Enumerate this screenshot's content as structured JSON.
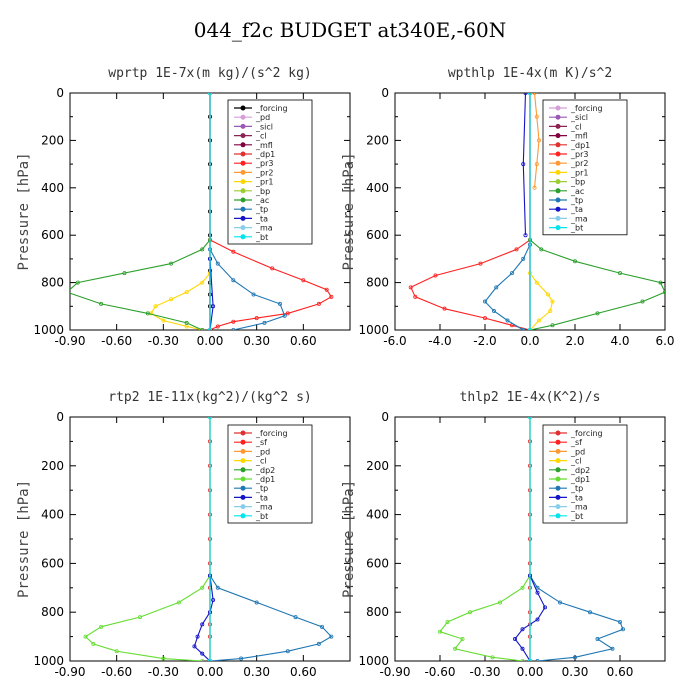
{
  "title": "044_f2c  BUDGET at340E,-60N",
  "chart_data": [
    {
      "type": "line",
      "title": "wprtp   1E-7x(m kg)/(s^2 kg)",
      "ylabel": "Pressure [hPa]",
      "xlim": [
        -0.9,
        0.9
      ],
      "ylim": [
        1000,
        0
      ],
      "xticks": [
        "-0.90",
        "-0.60",
        "-0.30",
        "0.00",
        "0.30",
        "0.60"
      ],
      "yticks": [
        "0",
        "200",
        "400",
        "600",
        "800",
        "1000"
      ],
      "legend": "top-right",
      "series": [
        {
          "name": "_forcing",
          "color": "#000000",
          "x": [
            0,
            0,
            0,
            0,
            0,
            0,
            0,
            0,
            0,
            0,
            0,
            0,
            0
          ],
          "y": [
            0,
            100,
            200,
            300,
            400,
            500,
            600,
            700,
            750,
            800,
            850,
            900,
            1000
          ]
        },
        {
          "name": "_pd",
          "color": "#d49fd8",
          "x": [
            0,
            0
          ],
          "y": [
            0,
            1000
          ]
        },
        {
          "name": "_sicl",
          "color": "#9b59b6",
          "x": [
            0,
            0
          ],
          "y": [
            0,
            1000
          ]
        },
        {
          "name": "_cl",
          "color": "#8b2252",
          "x": [
            0,
            0
          ],
          "y": [
            0,
            1000
          ]
        },
        {
          "name": "_mfl",
          "color": "#800040",
          "x": [
            0,
            0
          ],
          "y": [
            0,
            1000
          ]
        },
        {
          "name": "_dp1",
          "color": "#e03030",
          "x": [
            0,
            0
          ],
          "y": [
            0,
            1000
          ]
        },
        {
          "name": "_pr3",
          "color": "#ff2020",
          "x": [
            0,
            0.15,
            0.4,
            0.6,
            0.75,
            0.78,
            0.7,
            0.5,
            0.3,
            0.15,
            0.05,
            0
          ],
          "y": [
            620,
            670,
            740,
            790,
            830,
            860,
            890,
            930,
            950,
            965,
            985,
            1000
          ]
        },
        {
          "name": "_pr2",
          "color": "#ff9933",
          "x": [
            0,
            0
          ],
          "y": [
            0,
            1000
          ]
        },
        {
          "name": "_pr1",
          "color": "#ffd700",
          "x": [
            0,
            -0.05,
            -0.15,
            -0.25,
            -0.35,
            -0.38,
            -0.3,
            -0.15,
            -0.05
          ],
          "y": [
            760,
            800,
            840,
            870,
            900,
            930,
            960,
            985,
            1000
          ]
        },
        {
          "name": "_bp",
          "color": "#9acd32",
          "x": [
            0,
            0
          ],
          "y": [
            0,
            1000
          ]
        },
        {
          "name": "_ac",
          "color": "#2ca02c",
          "x": [
            0,
            -0.05,
            -0.25,
            -0.55,
            -0.85,
            -0.92,
            -0.7,
            -0.4,
            -0.15,
            -0.05
          ],
          "y": [
            620,
            660,
            720,
            760,
            800,
            840,
            890,
            930,
            970,
            1000
          ]
        },
        {
          "name": "_tp",
          "color": "#1f77b4",
          "x": [
            0,
            0.05,
            0.15,
            0.28,
            0.45,
            0.48,
            0.35,
            0.15
          ],
          "y": [
            660,
            720,
            790,
            850,
            890,
            940,
            970,
            1000
          ]
        },
        {
          "name": "_ta",
          "color": "#1515c8",
          "x": [
            0,
            0.02,
            0
          ],
          "y": [
            700,
            900,
            1000
          ]
        },
        {
          "name": "_ma",
          "color": "#87ceeb",
          "x": [
            0,
            0
          ],
          "y": [
            0,
            1000
          ]
        },
        {
          "name": "_bt",
          "color": "#00e5ee",
          "x": [
            0,
            0
          ],
          "y": [
            0,
            1000
          ]
        }
      ]
    },
    {
      "type": "line",
      "title": "wpthlp   1E-4x(m K)/s^2",
      "ylabel": "Pressure [hPa]",
      "xlim": [
        -6.0,
        6.0
      ],
      "ylim": [
        1000,
        0
      ],
      "xticks": [
        "-6.0",
        "-4.0",
        "-2.0",
        "0.0",
        "2.0",
        "4.0",
        "6.0"
      ],
      "yticks": [
        "0",
        "200",
        "400",
        "600",
        "800",
        "1000"
      ],
      "legend": "top-right",
      "series": [
        {
          "name": "_forcing",
          "color": "#d49fd8",
          "x": [
            0,
            0
          ],
          "y": [
            0,
            1000
          ]
        },
        {
          "name": "_sicl",
          "color": "#9b59b6",
          "x": [
            0,
            0
          ],
          "y": [
            0,
            1000
          ]
        },
        {
          "name": "_cl",
          "color": "#8b2252",
          "x": [
            0,
            0
          ],
          "y": [
            0,
            1000
          ]
        },
        {
          "name": "_mfl",
          "color": "#800040",
          "x": [
            0,
            0
          ],
          "y": [
            0,
            1000
          ]
        },
        {
          "name": "_dp1",
          "color": "#e03030",
          "x": [
            0,
            0
          ],
          "y": [
            0,
            1000
          ]
        },
        {
          "name": "_pr3",
          "color": "#ff2020",
          "x": [
            0,
            -0.6,
            -2.2,
            -4.2,
            -5.3,
            -5.1,
            -3.8,
            -2.0,
            -0.8,
            0
          ],
          "y": [
            620,
            660,
            720,
            770,
            820,
            860,
            910,
            950,
            980,
            1000
          ]
        },
        {
          "name": "_pr2",
          "color": "#ff9933",
          "x": [
            0.2,
            0.3,
            0.4,
            0.3,
            0.2
          ],
          "y": [
            0,
            100,
            200,
            300,
            400
          ]
        },
        {
          "name": "_pr1",
          "color": "#ffd700",
          "x": [
            0,
            0.3,
            0.8,
            1.0,
            0.9,
            0.4,
            0
          ],
          "y": [
            760,
            800,
            850,
            880,
            920,
            960,
            1000
          ]
        },
        {
          "name": "_bp",
          "color": "#9acd32",
          "x": [
            0,
            0
          ],
          "y": [
            0,
            1000
          ]
        },
        {
          "name": "_ac",
          "color": "#2ca02c",
          "x": [
            0,
            0.5,
            2.0,
            4.0,
            5.8,
            6.0,
            5.0,
            3.0,
            1.0,
            0
          ],
          "y": [
            620,
            660,
            710,
            760,
            800,
            840,
            880,
            930,
            980,
            1000
          ]
        },
        {
          "name": "_tp",
          "color": "#1f77b4",
          "x": [
            0,
            -0.3,
            -0.8,
            -1.5,
            -2.0,
            -1.6,
            -1.0,
            -0.3
          ],
          "y": [
            640,
            700,
            760,
            820,
            880,
            920,
            960,
            1000
          ]
        },
        {
          "name": "_ta",
          "color": "#1515c8",
          "x": [
            -0.2,
            -0.3,
            -0.2
          ],
          "y": [
            0,
            300,
            600
          ]
        },
        {
          "name": "_ma",
          "color": "#87ceeb",
          "x": [
            0,
            0
          ],
          "y": [
            0,
            1000
          ]
        },
        {
          "name": "_bt",
          "color": "#00e5ee",
          "x": [
            0,
            0
          ],
          "y": [
            0,
            1000
          ]
        }
      ]
    },
    {
      "type": "line",
      "title": "rtp2   1E-11x(kg^2)/(kg^2 s)",
      "ylabel": "Pressure [hPa]",
      "xlim": [
        -0.9,
        0.9
      ],
      "ylim": [
        1000,
        0
      ],
      "xticks": [
        "-0.90",
        "-0.60",
        "-0.30",
        "0.00",
        "0.30",
        "0.60"
      ],
      "yticks": [
        "0",
        "200",
        "400",
        "600",
        "800",
        "1000"
      ],
      "legend": "top-right",
      "series": [
        {
          "name": "_forcing",
          "color": "#e03030",
          "x": [
            0,
            0,
            0,
            0,
            0,
            0,
            0,
            0,
            0,
            0,
            0,
            0
          ],
          "y": [
            0,
            100,
            200,
            300,
            400,
            500,
            600,
            700,
            800,
            850,
            900,
            1000
          ]
        },
        {
          "name": "_sf",
          "color": "#ff2020",
          "x": [
            0,
            0
          ],
          "y": [
            0,
            1000
          ]
        },
        {
          "name": "_pd",
          "color": "#ff9933",
          "x": [
            0,
            0
          ],
          "y": [
            0,
            1000
          ]
        },
        {
          "name": "_cl",
          "color": "#ffd700",
          "x": [
            0,
            0
          ],
          "y": [
            0,
            1000
          ]
        },
        {
          "name": "_dp2",
          "color": "#2ca02c",
          "x": [
            0,
            0
          ],
          "y": [
            0,
            1000
          ]
        },
        {
          "name": "_dp1",
          "color": "#66dd33",
          "x": [
            0,
            -0.05,
            -0.2,
            -0.45,
            -0.7,
            -0.8,
            -0.75,
            -0.6,
            -0.3,
            -0.05
          ],
          "y": [
            650,
            700,
            760,
            820,
            860,
            900,
            930,
            960,
            990,
            1000
          ]
        },
        {
          "name": "_tp",
          "color": "#1f77b4",
          "x": [
            0,
            0.05,
            0.3,
            0.55,
            0.72,
            0.78,
            0.7,
            0.5,
            0.2,
            0
          ],
          "y": [
            650,
            700,
            760,
            820,
            860,
            900,
            930,
            960,
            990,
            1000
          ]
        },
        {
          "name": "_ta",
          "color": "#1515c8",
          "x": [
            0,
            0.02,
            0,
            -0.05,
            -0.08,
            -0.1,
            -0.05,
            0
          ],
          "y": [
            650,
            750,
            800,
            850,
            900,
            940,
            970,
            1000
          ]
        },
        {
          "name": "_ma",
          "color": "#87ceeb",
          "x": [
            0,
            0
          ],
          "y": [
            0,
            1000
          ]
        },
        {
          "name": "_bt",
          "color": "#00e5ee",
          "x": [
            0,
            0
          ],
          "y": [
            0,
            1000
          ]
        }
      ]
    },
    {
      "type": "line",
      "title": "thlp2   1E-4x(K^2)/s",
      "ylabel": "Pressure [hPa]",
      "xlim": [
        -0.9,
        0.9
      ],
      "ylim": [
        1000,
        0
      ],
      "xticks": [
        "-0.90",
        "-0.60",
        "-0.30",
        "0.00",
        "0.30",
        "0.60"
      ],
      "yticks": [
        "0",
        "200",
        "400",
        "600",
        "800",
        "1000"
      ],
      "legend": "top-right",
      "series": [
        {
          "name": "_forcing",
          "color": "#e03030",
          "x": [
            0,
            0,
            0,
            0,
            0,
            0,
            0,
            0,
            0,
            0,
            0,
            0
          ],
          "y": [
            0,
            100,
            200,
            300,
            400,
            500,
            600,
            700,
            800,
            850,
            900,
            1000
          ]
        },
        {
          "name": "_sf",
          "color": "#ff2020",
          "x": [
            0,
            0
          ],
          "y": [
            0,
            1000
          ]
        },
        {
          "name": "_pd",
          "color": "#ff9933",
          "x": [
            0,
            0
          ],
          "y": [
            0,
            1000
          ]
        },
        {
          "name": "_cl",
          "color": "#ffd700",
          "x": [
            0,
            0
          ],
          "y": [
            0,
            1000
          ]
        },
        {
          "name": "_dp2",
          "color": "#2ca02c",
          "x": [
            0,
            0
          ],
          "y": [
            0,
            1000
          ]
        },
        {
          "name": "_dp1",
          "color": "#66dd33",
          "x": [
            0,
            -0.05,
            -0.2,
            -0.4,
            -0.55,
            -0.6,
            -0.45,
            -0.5,
            -0.25,
            -0.05
          ],
          "y": [
            650,
            700,
            760,
            800,
            840,
            880,
            910,
            950,
            985,
            1000
          ]
        },
        {
          "name": "_tp",
          "color": "#1f77b4",
          "x": [
            0,
            0.05,
            0.2,
            0.4,
            0.6,
            0.62,
            0.45,
            0.55,
            0.3,
            0.05
          ],
          "y": [
            650,
            700,
            760,
            800,
            840,
            870,
            910,
            950,
            985,
            1000
          ]
        },
        {
          "name": "_ta",
          "color": "#1515c8",
          "x": [
            0,
            0.05,
            0.1,
            0.05,
            -0.05,
            -0.1,
            -0.05,
            0
          ],
          "y": [
            650,
            720,
            780,
            830,
            870,
            910,
            950,
            1000
          ]
        },
        {
          "name": "_ma",
          "color": "#87ceeb",
          "x": [
            0,
            0
          ],
          "y": [
            0,
            1000
          ]
        },
        {
          "name": "_bt",
          "color": "#00e5ee",
          "x": [
            0,
            0
          ],
          "y": [
            0,
            1000
          ]
        }
      ]
    }
  ]
}
